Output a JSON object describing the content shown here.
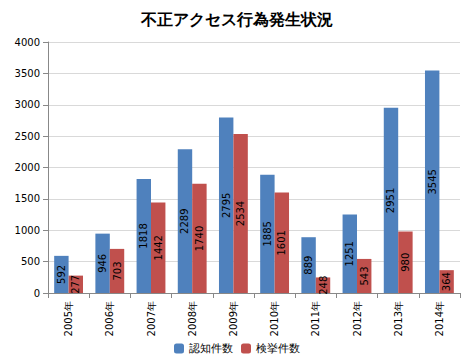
{
  "chart_data": {
    "type": "bar",
    "title": "不正アクセス行為発生状況",
    "categories": [
      "2005年",
      "2006年",
      "2007年",
      "2008年",
      "2009年",
      "2010年",
      "2011年",
      "2012年",
      "2013年",
      "2014年"
    ],
    "series": [
      {
        "name": "認知件数",
        "color": "#4f81bd",
        "values": [
          592,
          946,
          1818,
          2289,
          2795,
          1885,
          889,
          1251,
          2951,
          3545
        ]
      },
      {
        "name": "検挙件数",
        "color": "#c0504d",
        "values": [
          277,
          703,
          1442,
          1740,
          2534,
          1601,
          248,
          543,
          980,
          364
        ]
      }
    ],
    "ylim": [
      0,
      4000
    ],
    "yticks": [
      0,
      500,
      1000,
      1500,
      2000,
      2500,
      3000,
      3500,
      4000
    ],
    "grid": true,
    "legend": "bottom",
    "data_labels": true
  }
}
